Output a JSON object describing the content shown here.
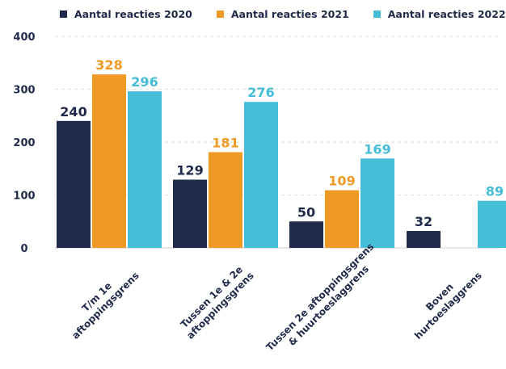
{
  "chart_data": {
    "type": "bar",
    "title": "",
    "xlabel": "",
    "ylabel": "",
    "ylim": [
      0,
      400
    ],
    "yticks": [
      0,
      100,
      200,
      300,
      400
    ],
    "grid": true,
    "legend_position": "top",
    "categories": [
      [
        "T/m 1e",
        "aftoppingsgrens"
      ],
      [
        "Tussen 1e & 2e",
        "aftoppingsgrens"
      ],
      [
        "Tussen 2e aftoppingsgrens",
        "& huurtoeslaggrens"
      ],
      [
        "Boven",
        "hurtoeslaggrens"
      ]
    ],
    "series": [
      {
        "name": "Aantal reacties 2020",
        "color": "#1f2a4a",
        "values": [
          240,
          129,
          50,
          32
        ]
      },
      {
        "name": "Aantal reacties 2021",
        "color": "#f09a25",
        "values": [
          328,
          181,
          109,
          null
        ]
      },
      {
        "name": "Aantal reacties 2022",
        "color": "#45bdd6",
        "values": [
          296,
          276,
          169,
          89
        ]
      }
    ]
  }
}
